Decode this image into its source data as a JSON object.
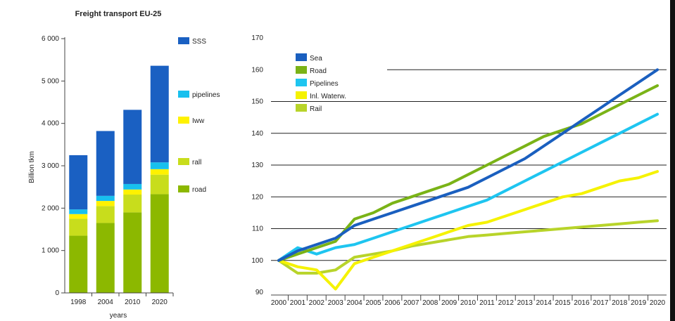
{
  "chart_data": [
    {
      "type": "bar",
      "stacked": true,
      "title": "Freight transport EU-25",
      "xlabel": "years",
      "ylabel": "Billion tkm",
      "ylim": [
        0,
        6000
      ],
      "yticks": [
        "0",
        "1 000",
        "2 000",
        "3 000",
        "4 000",
        "5 000",
        "6 000"
      ],
      "categories": [
        "1998",
        "2004",
        "2010",
        "2020"
      ],
      "legend_position": "right",
      "series": [
        {
          "name": "road",
          "color": "#8cb800",
          "values": [
            1350,
            1650,
            1900,
            2330
          ]
        },
        {
          "name": "rall",
          "color": "#c8dd1c",
          "values": [
            400,
            400,
            420,
            460
          ]
        },
        {
          "name": "Iww",
          "color": "#fff200",
          "values": [
            110,
            120,
            120,
            130
          ]
        },
        {
          "name": "pipelines",
          "color": "#18c0ee",
          "values": [
            110,
            120,
            130,
            160
          ]
        },
        {
          "name": "SSS",
          "color": "#1a60c2",
          "values": [
            1280,
            1530,
            1750,
            2280
          ]
        }
      ]
    },
    {
      "type": "line",
      "title": "",
      "xlabel": "",
      "ylabel": "",
      "ylim": [
        90,
        170
      ],
      "yticks": [
        "90",
        "100",
        "110",
        "120",
        "130",
        "140",
        "150",
        "160",
        "170"
      ],
      "x": [
        "2000",
        "2001",
        "2002",
        "2003",
        "2004",
        "2005",
        "2006",
        "2007",
        "2008",
        "2009",
        "2010",
        "2011",
        "2012",
        "2013",
        "2014",
        "2015",
        "2016",
        "2017",
        "2018",
        "2019",
        "2020"
      ],
      "grid": "horizontal",
      "legend_position": "top-left",
      "series": [
        {
          "name": "Sea",
          "color": "#1a5fbf",
          "values": [
            100,
            103,
            105,
            107,
            111,
            113,
            115,
            117,
            119,
            121,
            123,
            126,
            129,
            132,
            136,
            140,
            144,
            148,
            152,
            156,
            160
          ]
        },
        {
          "name": "Road",
          "color": "#7ab317",
          "values": [
            100,
            102,
            104,
            106,
            113,
            115,
            118,
            120,
            122,
            124,
            127,
            130,
            133,
            136,
            139,
            141,
            143,
            146,
            149,
            152,
            155
          ]
        },
        {
          "name": "Pipelines",
          "color": "#1ec5f0",
          "values": [
            100,
            104,
            102,
            104,
            105,
            107,
            109,
            111,
            113,
            115,
            117,
            119,
            122,
            125,
            128,
            131,
            134,
            137,
            140,
            143,
            146
          ]
        },
        {
          "name": "Inl. Waterw.",
          "color": "#f5f200",
          "values": [
            100,
            98,
            97,
            91,
            99,
            101,
            103,
            105,
            107,
            109,
            111,
            112,
            114,
            116,
            118,
            120,
            121,
            123,
            125,
            126,
            128
          ]
        },
        {
          "name": "Rail",
          "color": "#b8d42a",
          "values": [
            100,
            96,
            96,
            97,
            101,
            102,
            103,
            104.5,
            105.5,
            106.5,
            107.5,
            108,
            108.5,
            109,
            109.5,
            110,
            110.5,
            111,
            111.5,
            112,
            112.5
          ]
        }
      ]
    }
  ]
}
